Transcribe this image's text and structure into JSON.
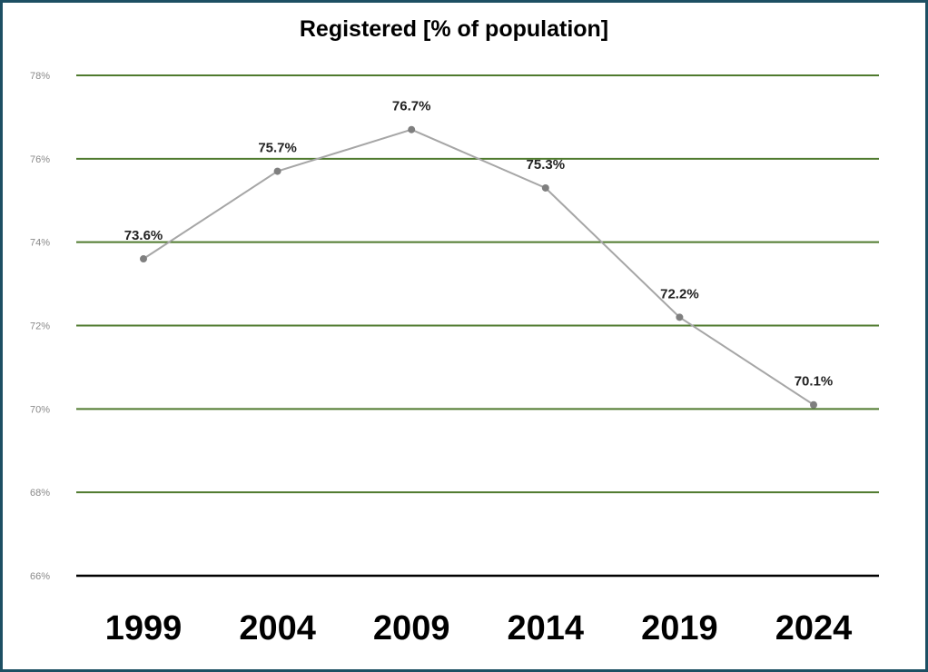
{
  "chart_data": {
    "type": "line",
    "title": "Registered [% of population]",
    "categories": [
      "1999",
      "2004",
      "2009",
      "2014",
      "2019",
      "2024"
    ],
    "values": [
      73.6,
      75.7,
      76.7,
      75.3,
      72.2,
      70.1
    ],
    "data_labels": [
      "73.6%",
      "75.7%",
      "76.7%",
      "75.3%",
      "72.2%",
      "70.1%"
    ],
    "y_ticks": [
      78,
      76,
      74,
      72,
      70,
      68,
      66
    ],
    "y_tick_labels": [
      "78%",
      "76%",
      "74%",
      "72%",
      "70%",
      "68%",
      "66%"
    ],
    "ylim": [
      66,
      78
    ],
    "grid": true,
    "legend": "none",
    "xlabel": "",
    "ylabel": "",
    "colors": {
      "grid": "#4f7a2e",
      "line": "#a6a6a6",
      "marker": "#7f7f7f",
      "axis": "#000000",
      "frame": "#1d4f63"
    }
  }
}
